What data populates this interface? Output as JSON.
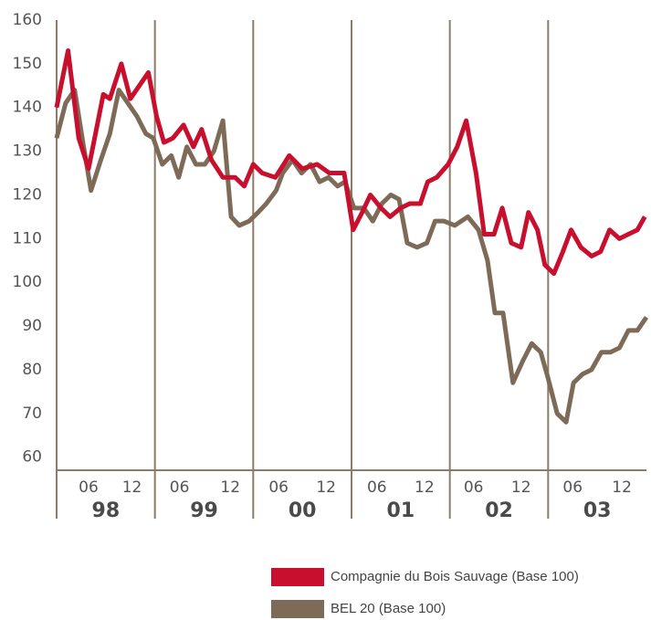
{
  "chart_data": {
    "type": "line",
    "xlim": [
      0,
      72
    ],
    "ylim": [
      57,
      160
    ],
    "yticks": [
      60,
      70,
      80,
      90,
      100,
      110,
      120,
      130,
      140,
      150,
      160
    ],
    "xticks": [
      {
        "value": 3.9,
        "label": "06"
      },
      {
        "value": 9.2,
        "label": "12"
      },
      {
        "value": 15.0,
        "label": "06"
      },
      {
        "value": 21.2,
        "label": "12"
      },
      {
        "value": 27.1,
        "label": "06"
      },
      {
        "value": 32.9,
        "label": "12"
      },
      {
        "value": 39.1,
        "label": "06"
      },
      {
        "value": 44.9,
        "label": "12"
      },
      {
        "value": 50.9,
        "label": "06"
      },
      {
        "value": 56.7,
        "label": "12"
      },
      {
        "value": 63.0,
        "label": "06"
      },
      {
        "value": 69.0,
        "label": "12"
      }
    ],
    "year_ticks": [
      {
        "value": 6,
        "label": "98"
      },
      {
        "value": 18,
        "label": "99"
      },
      {
        "value": 30,
        "label": "00"
      },
      {
        "value": 42,
        "label": "01"
      },
      {
        "value": 54,
        "label": "02"
      },
      {
        "value": 66,
        "label": "03"
      }
    ],
    "xgrid": [
      0,
      12,
      24,
      36,
      48,
      60
    ],
    "legend": "bottom",
    "series": [
      {
        "name": "Compagnie du Bois Sauvage (Base 100)",
        "color": "#c8102e",
        "x": [
          0,
          1.4,
          2.7,
          3.9,
          5.7,
          6.5,
          7.9,
          9.0,
          11.2,
          12.2,
          13.1,
          14.2,
          15.5,
          16.7,
          17.7,
          18.9,
          20.3,
          21.8,
          22.9,
          24.0,
          25.1,
          26.7,
          28.4,
          30.0,
          31.8,
          33.3,
          35.1,
          36.2,
          37.3,
          38.3,
          39.6,
          40.7,
          42.0,
          43.1,
          44.4,
          45.3,
          46.4,
          47.8,
          48.9,
          50.0,
          51.2,
          52.2,
          53.4,
          54.4,
          55.5,
          56.7,
          57.6,
          58.7,
          59.6,
          60.7,
          61.8,
          62.8,
          64.0,
          65.3,
          66.4,
          67.5,
          68.7,
          69.8,
          70.9,
          71.8
        ],
        "values": [
          140,
          153,
          133,
          126,
          143,
          142,
          150,
          142,
          148,
          138,
          132,
          133,
          136,
          131,
          135,
          128,
          124,
          124,
          122,
          127,
          125,
          124,
          129,
          126,
          127,
          125,
          125,
          112,
          116,
          120,
          117,
          115,
          117,
          118,
          118,
          123,
          124,
          127,
          131,
          137,
          125,
          111,
          111,
          117,
          109,
          108,
          116,
          112,
          104,
          102,
          107,
          112,
          108,
          106,
          107,
          112,
          110,
          111,
          112,
          115
        ]
      },
      {
        "name": "BEL 20 (Base 100)",
        "color": "#7d6b57",
        "x": [
          0,
          1.1,
          2.2,
          3.3,
          4.2,
          5.4,
          6.5,
          7.6,
          8.7,
          9.8,
          10.9,
          11.8,
          12.9,
          14.0,
          14.9,
          15.9,
          17.0,
          18.1,
          19.2,
          20.3,
          21.3,
          22.3,
          23.5,
          24.6,
          25.6,
          26.8,
          27.6,
          28.8,
          29.9,
          31.0,
          32.1,
          33.2,
          34.3,
          35.2,
          36.3,
          37.5,
          38.6,
          39.7,
          40.8,
          41.8,
          42.8,
          44.0,
          45.2,
          46.2,
          47.3,
          48.6,
          50.2,
          51.5,
          52.6,
          53.5,
          54.5,
          55.7,
          56.9,
          58.0,
          59.1,
          60.0,
          61.1,
          62.2,
          63.1,
          64.2,
          65.3,
          66.5,
          67.6,
          68.7,
          69.8,
          70.9,
          72.0
        ],
        "values": [
          133,
          141,
          144,
          131,
          121,
          128,
          134,
          144,
          141,
          138,
          134,
          133,
          127,
          129,
          124,
          131,
          127,
          127,
          130,
          137,
          115,
          113,
          114,
          116,
          118,
          121,
          125,
          128,
          125,
          127,
          123,
          124,
          122,
          123,
          117,
          117,
          114,
          118,
          120,
          119,
          109,
          108,
          109,
          114,
          114,
          113,
          115,
          112,
          105,
          93,
          93,
          77,
          82,
          86,
          84,
          78,
          70,
          68,
          77,
          79,
          80,
          84,
          84,
          85,
          89,
          89,
          92
        ]
      }
    ]
  }
}
